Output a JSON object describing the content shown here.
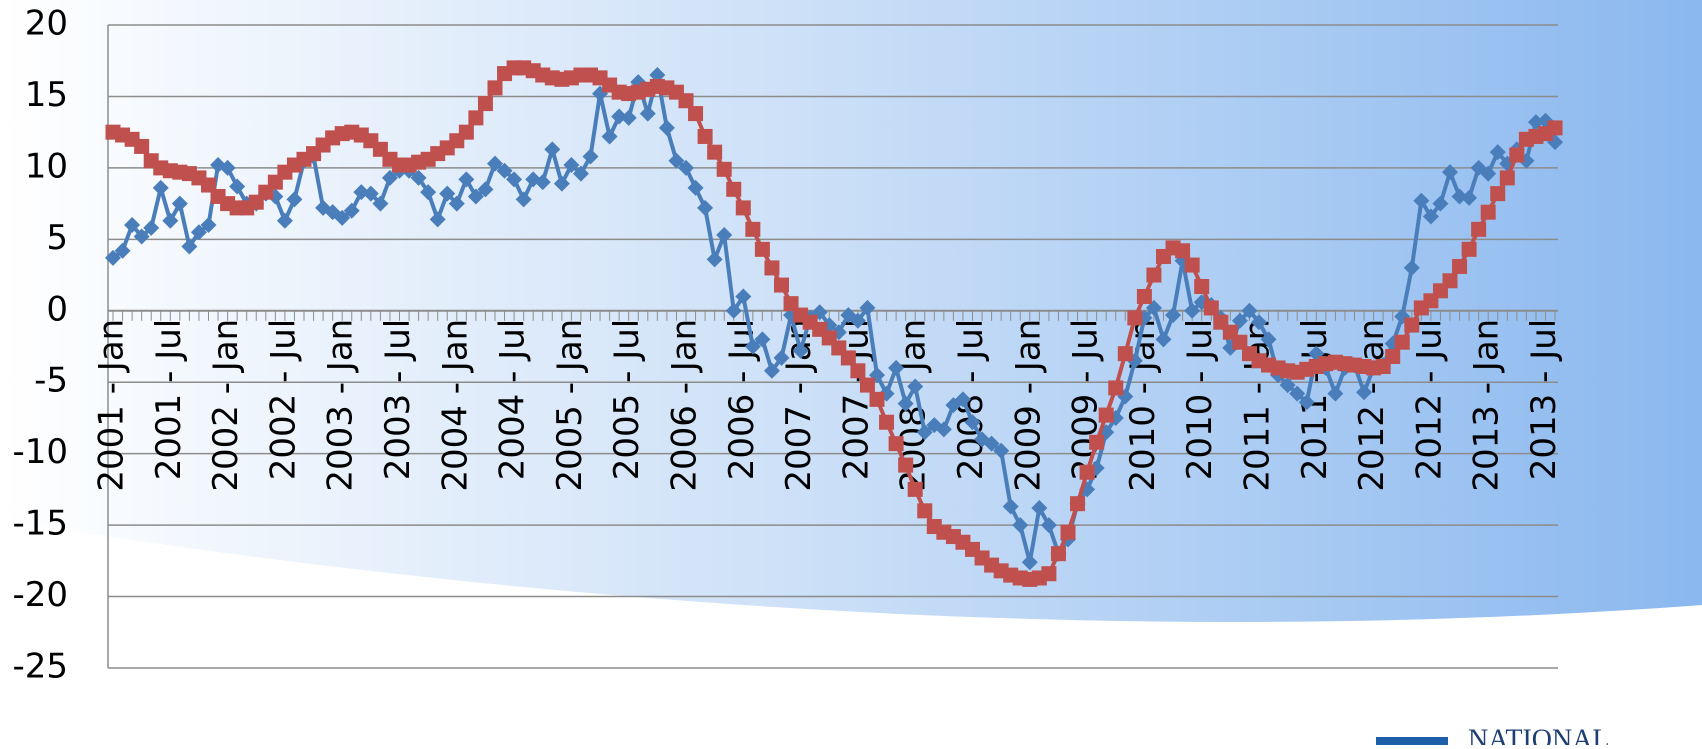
{
  "chart_data": {
    "type": "line",
    "categories": [
      "2001 - Jan",
      null,
      null,
      null,
      null,
      null,
      "2001 - Jul",
      null,
      null,
      null,
      null,
      null,
      "2002 - Jan",
      null,
      null,
      null,
      null,
      null,
      "2002 - Jul",
      null,
      null,
      null,
      null,
      null,
      "2003 - Jan",
      null,
      null,
      null,
      null,
      null,
      "2003 - Jul",
      null,
      null,
      null,
      null,
      null,
      "2004 - Jan",
      null,
      null,
      null,
      null,
      null,
      "2004 - Jul",
      null,
      null,
      null,
      null,
      null,
      "2005 - Jan",
      null,
      null,
      null,
      null,
      null,
      "2005 - Jul",
      null,
      null,
      null,
      null,
      null,
      "2006 - Jan",
      null,
      null,
      null,
      null,
      null,
      "2006 - Jul",
      null,
      null,
      null,
      null,
      null,
      "2007 - Jan",
      null,
      null,
      null,
      null,
      null,
      "2007 - Jul",
      null,
      null,
      null,
      null,
      null,
      "2008 - Jan",
      null,
      null,
      null,
      null,
      null,
      "2008 - Jul",
      null,
      null,
      null,
      null,
      null,
      "2009 - Jan",
      null,
      null,
      null,
      null,
      null,
      "2009 - Jul",
      null,
      null,
      null,
      null,
      null,
      "2010 - Jan",
      null,
      null,
      null,
      null,
      null,
      "2010 - Jul",
      null,
      null,
      null,
      null,
      null,
      "2011 - Jan",
      null,
      null,
      null,
      null,
      null,
      "2011 - Jul",
      null,
      null,
      null,
      null,
      null,
      "2012 - Jan",
      null,
      null,
      null,
      null,
      null,
      "2012 - Jul",
      null,
      null,
      null,
      null,
      null,
      "2013 - Jan",
      null,
      null,
      null,
      null,
      null,
      "2013 - Jul",
      null
    ],
    "series": [
      {
        "color": "#4a7ebb",
        "marker": "diamond",
        "values": [
          3.7,
          4.2,
          6,
          5.2,
          5.8,
          8.6,
          6.3,
          7.5,
          4.5,
          5.5,
          6,
          10.2,
          10,
          8.7,
          7.5,
          7.5,
          8.2,
          8,
          6.3,
          7.8,
          10.5,
          10.8,
          7.2,
          6.9,
          6.5,
          7,
          8.3,
          8.2,
          7.5,
          9.3,
          9.8,
          9.8,
          9.3,
          8.3,
          6.4,
          8.2,
          7.5,
          9.2,
          8,
          8.5,
          10.3,
          9.8,
          9.2,
          7.8,
          9.2,
          9,
          11.3,
          8.9,
          10.2,
          9.6,
          10.8,
          15.2,
          12.2,
          13.6,
          13.5,
          16,
          13.8,
          16.5,
          12.8,
          10.5,
          10,
          8.6,
          7.2,
          3.6,
          5.3,
          0,
          1,
          -2.5,
          -2,
          -4.2,
          -3.3,
          -0.3,
          -2.8,
          -0.5,
          -0.1,
          -1,
          -1.5,
          -0.3,
          -0.7,
          0.2,
          -4.5,
          -5.8,
          -4,
          -6.5,
          -5.3,
          -8.5,
          -8,
          -8.3,
          -6.6,
          -6.2,
          -7.8,
          -9,
          -9.3,
          -9.8,
          -13.7,
          -15,
          -17.6,
          -13.8,
          -15,
          -17,
          -16,
          -13.5,
          -12.5,
          -11,
          -8.5,
          -7.5,
          -6,
          -3.5,
          -0.5,
          0.2,
          -2,
          -0.3,
          3.5,
          0,
          0.6,
          0.4,
          -0.5,
          -2.6,
          -0.7,
          0,
          -0.8,
          -2,
          -4.5,
          -5.2,
          -5.8,
          -6.4,
          -3,
          -4,
          -5.8,
          -4,
          -3.8,
          -5.7,
          -4,
          -3.8,
          -2.3,
          -0.4,
          3,
          7.7,
          6.6,
          7.5,
          9.7,
          8,
          7.9,
          10,
          9.6,
          11.1,
          10.3,
          11.3,
          10.5,
          13.2,
          13.3,
          11.8
        ]
      },
      {
        "color": "#c0504d",
        "marker": "square",
        "values": [
          12.5,
          12.3,
          12,
          11.5,
          10.5,
          10,
          9.8,
          9.7,
          9.6,
          9.3,
          8.8,
          8,
          7.5,
          7.2,
          7.2,
          7.6,
          8.3,
          9,
          9.7,
          10.2,
          10.6,
          11,
          11.6,
          12.1,
          12.4,
          12.5,
          12.3,
          11.9,
          11.3,
          10.6,
          10.2,
          10.2,
          10.4,
          10.6,
          11,
          11.4,
          11.9,
          12.5,
          13.5,
          14.5,
          15.6,
          16.6,
          17,
          17,
          16.8,
          16.5,
          16.3,
          16.2,
          16.3,
          16.5,
          16.5,
          16.3,
          15.8,
          15.3,
          15.2,
          15.3,
          15.5,
          15.7,
          15.6,
          15.3,
          14.7,
          13.8,
          12.2,
          11.1,
          9.9,
          8.5,
          7.2,
          5.7,
          4.3,
          3,
          1.8,
          0.5,
          -0.3,
          -0.8,
          -1.3,
          -1.9,
          -2.6,
          -3.3,
          -4.2,
          -5.2,
          -6.2,
          -7.8,
          -9.3,
          -10.8,
          -12.5,
          -14,
          -15.1,
          -15.5,
          -15.8,
          -16.2,
          -16.7,
          -17.3,
          -17.8,
          -18.2,
          -18.5,
          -18.7,
          -18.8,
          -18.7,
          -18.4,
          -17,
          -15.5,
          -13.5,
          -11.3,
          -9.2,
          -7.3,
          -5.4,
          -3,
          -0.5,
          1,
          2.5,
          3.8,
          4.4,
          4.2,
          3.2,
          1.7,
          0.2,
          -0.8,
          -1.5,
          -2.2,
          -3,
          -3.5,
          -3.8,
          -4,
          -4.2,
          -4.3,
          -4.1,
          -3.9,
          -3.7,
          -3.6,
          -3.7,
          -3.8,
          -3.9,
          -4,
          -3.9,
          -3.2,
          -2.2,
          -1,
          0.2,
          0.7,
          1.4,
          2.1,
          3.1,
          4.3,
          5.7,
          6.9,
          8.2,
          9.3,
          10.9,
          12,
          12.2,
          12.4,
          12.8
        ]
      }
    ],
    "ylim": [
      -25,
      20
    ],
    "yticks": [
      -25,
      -20,
      -15,
      -10,
      -5,
      0,
      5,
      10,
      15,
      20
    ],
    "grid": true,
    "logo_text": "NATIONAL"
  }
}
